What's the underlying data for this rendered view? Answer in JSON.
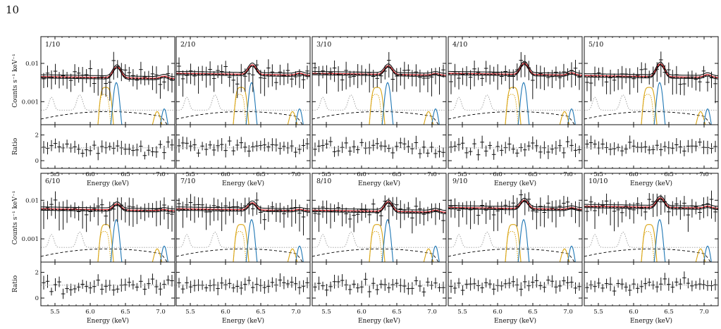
{
  "page": {
    "number": "10"
  },
  "colors": {
    "data": "#111111",
    "model": "#000000",
    "fit": "#e0252d",
    "continuum": "#000000",
    "line_blue": "#1f77b4",
    "line_yellow": "#d9a514",
    "line_dotted": "#9a9a9a",
    "ratio_ref": "#9a9a9a"
  },
  "chart_data": {
    "type": "scatter",
    "shared": {
      "xlabel": "Energy (keV)",
      "ylabel_top": "Counts s⁻¹ keV⁻¹",
      "ylabel_bottom": "Ratio",
      "xlim": [
        5.3,
        7.2
      ],
      "x_ticks": [
        "5.5",
        "6.0",
        "6.5",
        "7.0"
      ],
      "top_yscale": "log",
      "top_ylim": [
        0.00025,
        0.05
      ],
      "top_y_ticks": [
        "0.01",
        "0.001"
      ],
      "bottom_ylim": [
        -0.6,
        2.8
      ],
      "bottom_y_ticks": [
        "0",
        "2"
      ],
      "ratio_reference": 1.0
    },
    "panels": [
      {
        "label": "1/10",
        "continuum": 0.0045,
        "peak": 0.0085,
        "ratio_scatter": 0.35
      },
      {
        "label": "2/10",
        "continuum": 0.0055,
        "peak": 0.0095,
        "ratio_scatter": 0.3
      },
      {
        "label": "3/10",
        "continuum": 0.0055,
        "peak": 0.009,
        "ratio_scatter": 0.35
      },
      {
        "label": "4/10",
        "continuum": 0.0055,
        "peak": 0.0105,
        "ratio_scatter": 0.3
      },
      {
        "label": "5/10",
        "continuum": 0.0048,
        "peak": 0.01,
        "ratio_scatter": 0.35
      },
      {
        "label": "6/10",
        "continuum": 0.006,
        "peak": 0.0085,
        "ratio_scatter": 0.4
      },
      {
        "label": "7/10",
        "continuum": 0.006,
        "peak": 0.009,
        "ratio_scatter": 0.3
      },
      {
        "label": "8/10",
        "continuum": 0.0055,
        "peak": 0.0095,
        "ratio_scatter": 0.35
      },
      {
        "label": "9/10",
        "continuum": 0.0065,
        "peak": 0.0105,
        "ratio_scatter": 0.3
      },
      {
        "label": "10/10",
        "continuum": 0.007,
        "peak": 0.012,
        "ratio_scatter": 0.3
      }
    ]
  }
}
